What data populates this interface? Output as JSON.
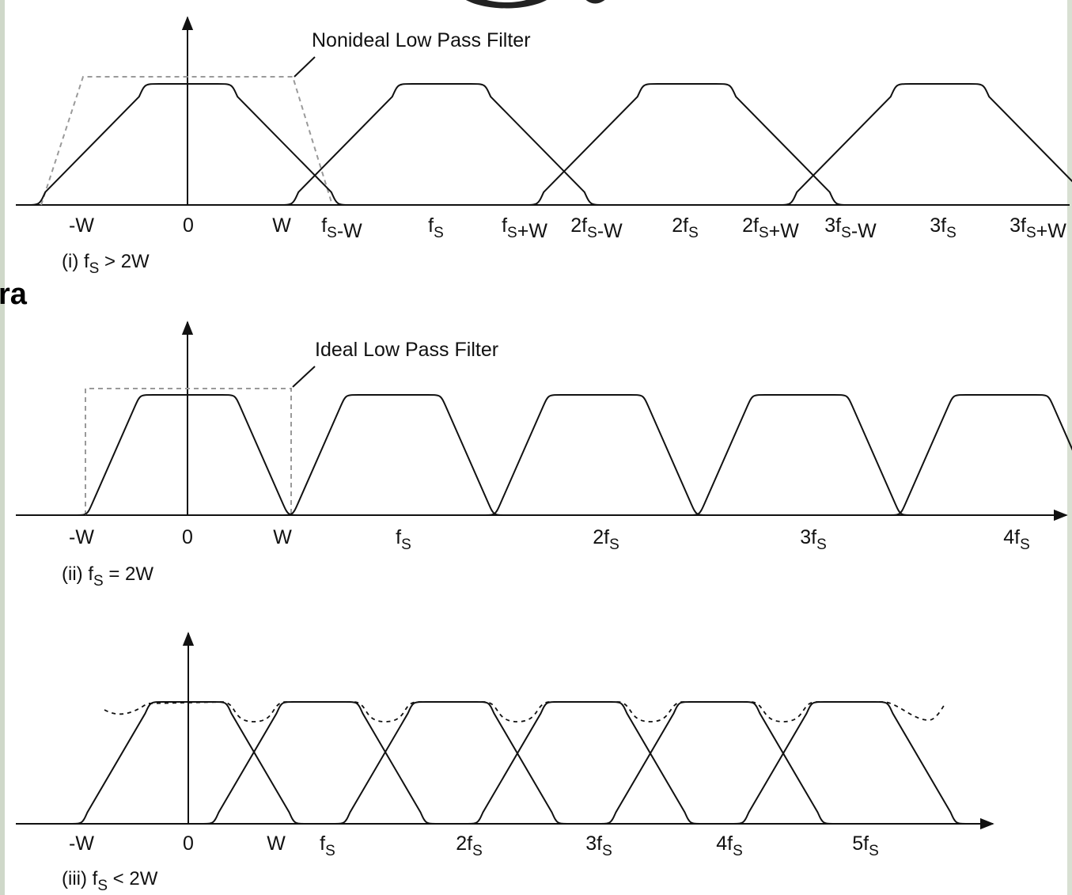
{
  "colors": {
    "curve": "#111111",
    "filter": "#9a9a9a",
    "heading": "#1a73c8",
    "background": "#ffffff"
  },
  "heading_fragment": "ra",
  "panels": {
    "p1": {
      "filter_label": "Nonideal Low Pass Filter",
      "caption": {
        "prefix": "(i)",
        "sym": "f",
        "sub": "S",
        "rest": " > 2W"
      },
      "ticks": [
        {
          "parts": [
            [
              "-W",
              ""
            ]
          ]
        },
        {
          "parts": [
            [
              "0",
              ""
            ]
          ]
        },
        {
          "parts": [
            [
              "W",
              ""
            ]
          ]
        },
        {
          "parts": [
            [
              "f",
              "S"
            ],
            [
              "-W",
              ""
            ]
          ]
        },
        {
          "parts": [
            [
              "f",
              "S"
            ]
          ]
        },
        {
          "parts": [
            [
              "f",
              "S"
            ],
            [
              "+W",
              ""
            ]
          ]
        },
        {
          "parts": [
            [
              "2f",
              "S"
            ],
            [
              "-W",
              ""
            ]
          ]
        },
        {
          "parts": [
            [
              "2f",
              "S"
            ]
          ]
        },
        {
          "parts": [
            [
              "2f",
              "S"
            ],
            [
              "+W",
              ""
            ]
          ]
        },
        {
          "parts": [
            [
              "3f",
              "S"
            ],
            [
              "-W",
              ""
            ]
          ]
        },
        {
          "parts": [
            [
              "3f",
              "S"
            ]
          ]
        },
        {
          "parts": [
            [
              "3f",
              "S"
            ],
            [
              "+W",
              ""
            ]
          ]
        }
      ]
    },
    "p2": {
      "filter_label": "Ideal Low Pass Filter",
      "caption": {
        "prefix": "(ii)",
        "sym": "f",
        "sub": "S",
        "rest": " = 2W"
      },
      "ticks": [
        {
          "parts": [
            [
              "-W",
              ""
            ]
          ]
        },
        {
          "parts": [
            [
              "0",
              ""
            ]
          ]
        },
        {
          "parts": [
            [
              "W",
              ""
            ]
          ]
        },
        {
          "parts": [
            [
              "f",
              "S"
            ]
          ]
        },
        {
          "parts": [
            [
              "2f",
              "S"
            ]
          ]
        },
        {
          "parts": [
            [
              "3f",
              "S"
            ]
          ]
        },
        {
          "parts": [
            [
              "4f",
              "S"
            ]
          ]
        }
      ]
    },
    "p3": {
      "caption": {
        "prefix": "(iii)",
        "sym": "f",
        "sub": "S",
        "rest": " < 2W"
      },
      "ticks": [
        {
          "parts": [
            [
              "-W",
              ""
            ]
          ]
        },
        {
          "parts": [
            [
              "0",
              ""
            ]
          ]
        },
        {
          "parts": [
            [
              "W",
              ""
            ]
          ]
        },
        {
          "parts": [
            [
              "f",
              "S"
            ]
          ]
        },
        {
          "parts": [
            [
              "2f",
              "S"
            ]
          ]
        },
        {
          "parts": [
            [
              "3f",
              "S"
            ]
          ]
        },
        {
          "parts": [
            [
              "4f",
              "S"
            ]
          ]
        },
        {
          "parts": [
            [
              "5f",
              "S"
            ]
          ]
        }
      ]
    }
  }
}
